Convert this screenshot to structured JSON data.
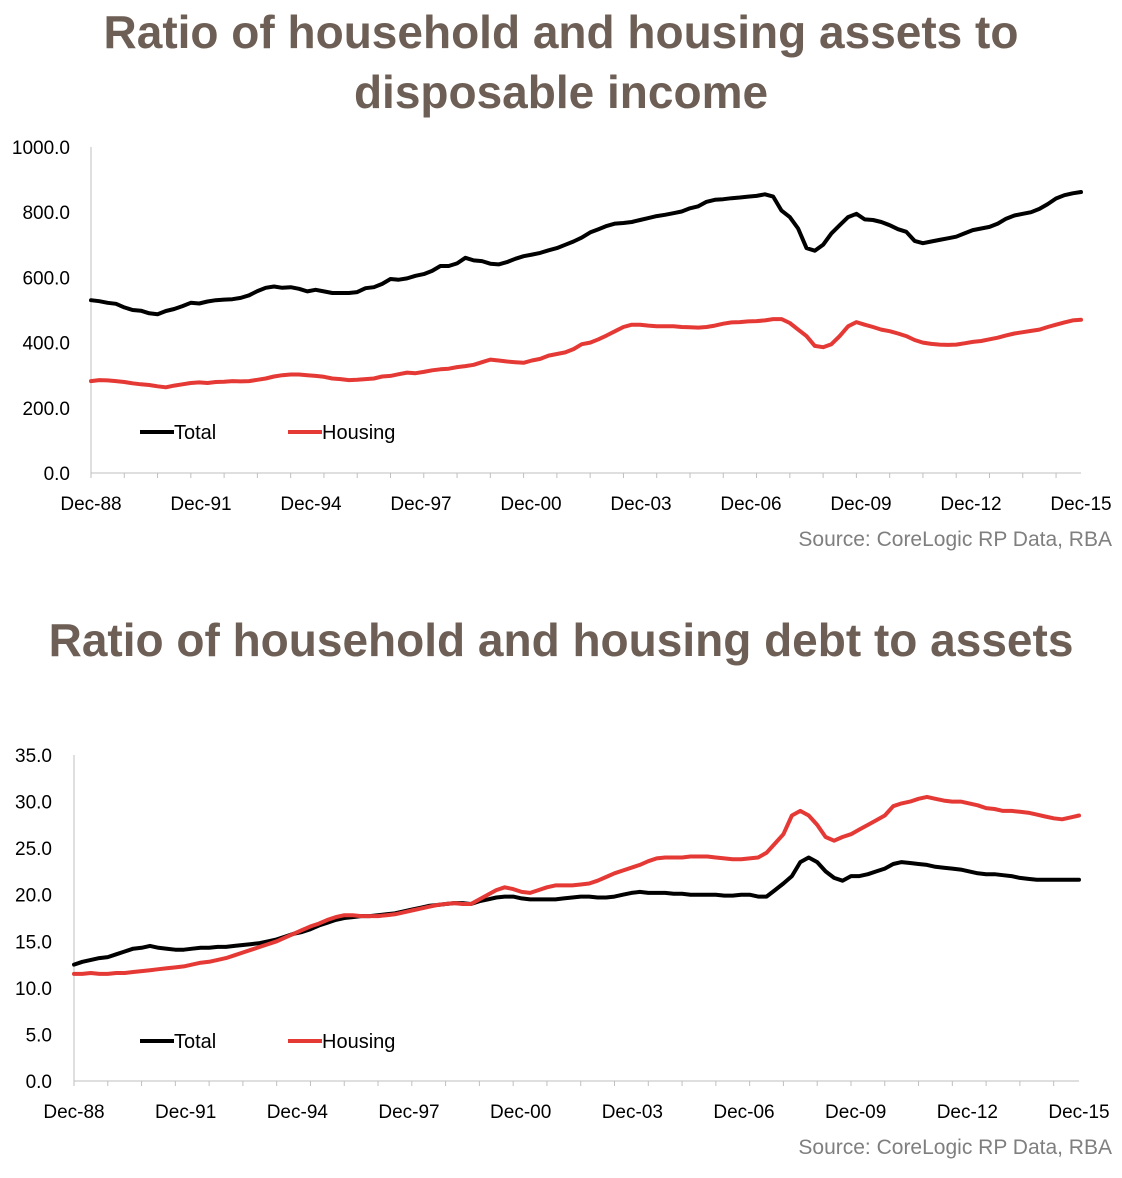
{
  "chart_data": [
    {
      "type": "line",
      "title": "Ratio of household and housing assets to disposable income",
      "source": "Source: CoreLogic RP Data, RBA",
      "x_tick_labels": [
        "Dec-88",
        "Dec-91",
        "Dec-94",
        "Dec-97",
        "Dec-00",
        "Dec-03",
        "Dec-06",
        "Dec-09",
        "Dec-12",
        "Dec-15"
      ],
      "y_tick_labels": [
        "0.0",
        "200.0",
        "400.0",
        "600.0",
        "800.0",
        "1000.0"
      ],
      "ylim": [
        0,
        1000
      ],
      "xlim": [
        "Dec-88",
        "Dec-15"
      ],
      "grid": false,
      "legend_position": "lower-left",
      "series": [
        {
          "name": "Total",
          "color": "#000000",
          "values": [
            530,
            527,
            522,
            519,
            508,
            500,
            498,
            490,
            487,
            497,
            503,
            512,
            522,
            520,
            526,
            530,
            532,
            533,
            537,
            545,
            558,
            568,
            572,
            568,
            570,
            565,
            557,
            562,
            557,
            552,
            552,
            552,
            555,
            567,
            570,
            580,
            595,
            593,
            597,
            605,
            610,
            620,
            635,
            635,
            643,
            660,
            652,
            650,
            642,
            640,
            647,
            657,
            665,
            670,
            675,
            683,
            690,
            700,
            710,
            722,
            738,
            748,
            758,
            765,
            767,
            770,
            776,
            782,
            788,
            792,
            797,
            802,
            812,
            818,
            832,
            838,
            840,
            843,
            845,
            848,
            850,
            855,
            848,
            805,
            785,
            750,
            690,
            682,
            700,
            735,
            760,
            785,
            795,
            778,
            776,
            770,
            760,
            748,
            740,
            712,
            705,
            710,
            715,
            720,
            725,
            735,
            745,
            750,
            755,
            765,
            780,
            790,
            795,
            800,
            810,
            825,
            842,
            852,
            858,
            862
          ]
        },
        {
          "name": "Housing",
          "color": "#e53935",
          "values": [
            282,
            285,
            284,
            282,
            279,
            275,
            272,
            270,
            266,
            263,
            268,
            272,
            276,
            278,
            276,
            279,
            280,
            282,
            281,
            282,
            286,
            290,
            296,
            300,
            302,
            302,
            300,
            298,
            295,
            290,
            288,
            285,
            286,
            288,
            290,
            296,
            298,
            303,
            308,
            306,
            310,
            315,
            318,
            320,
            325,
            328,
            332,
            340,
            348,
            345,
            342,
            340,
            338,
            345,
            350,
            360,
            365,
            370,
            380,
            395,
            400,
            410,
            422,
            435,
            448,
            455,
            455,
            452,
            450,
            450,
            450,
            448,
            447,
            446,
            448,
            452,
            458,
            462,
            463,
            465,
            466,
            468,
            472,
            472,
            460,
            440,
            420,
            390,
            386,
            395,
            420,
            450,
            463,
            455,
            448,
            440,
            435,
            428,
            420,
            408,
            400,
            396,
            394,
            393,
            394,
            398,
            402,
            405,
            410,
            415,
            422,
            428,
            432,
            436,
            440,
            448,
            455,
            462,
            468,
            470
          ]
        }
      ]
    },
    {
      "type": "line",
      "title": "Ratio of household and housing debt to assets",
      "source": "Source: CoreLogic RP Data, RBA",
      "x_tick_labels": [
        "Dec-88",
        "Dec-91",
        "Dec-94",
        "Dec-97",
        "Dec-00",
        "Dec-03",
        "Dec-06",
        "Dec-09",
        "Dec-12",
        "Dec-15"
      ],
      "y_tick_labels": [
        "0.0",
        "5.0",
        "10.0",
        "15.0",
        "20.0",
        "25.0",
        "30.0",
        "35.0"
      ],
      "ylim": [
        0,
        35
      ],
      "xlim": [
        "Dec-88",
        "Dec-15"
      ],
      "grid": false,
      "legend_position": "lower-left",
      "series": [
        {
          "name": "Total",
          "color": "#000000",
          "values": [
            12.5,
            12.8,
            13.0,
            13.2,
            13.3,
            13.6,
            13.9,
            14.2,
            14.3,
            14.5,
            14.3,
            14.2,
            14.1,
            14.1,
            14.2,
            14.3,
            14.3,
            14.4,
            14.4,
            14.5,
            14.6,
            14.7,
            14.8,
            15.0,
            15.2,
            15.5,
            15.8,
            16.0,
            16.3,
            16.7,
            17.0,
            17.3,
            17.5,
            17.6,
            17.7,
            17.7,
            17.8,
            17.9,
            18.0,
            18.2,
            18.4,
            18.6,
            18.8,
            18.9,
            19.0,
            19.1,
            19.1,
            19.0,
            19.3,
            19.5,
            19.7,
            19.8,
            19.8,
            19.6,
            19.5,
            19.5,
            19.5,
            19.5,
            19.6,
            19.7,
            19.8,
            19.8,
            19.7,
            19.7,
            19.8,
            20.0,
            20.2,
            20.3,
            20.2,
            20.2,
            20.2,
            20.1,
            20.1,
            20.0,
            20.0,
            20.0,
            20.0,
            19.9,
            19.9,
            20.0,
            20.0,
            19.8,
            19.8,
            20.5,
            21.2,
            22.0,
            23.5,
            24.0,
            23.5,
            22.5,
            21.8,
            21.5,
            22.0,
            22.0,
            22.2,
            22.5,
            22.8,
            23.3,
            23.5,
            23.4,
            23.3,
            23.2,
            23.0,
            22.9,
            22.8,
            22.7,
            22.5,
            22.3,
            22.2,
            22.2,
            22.1,
            22.0,
            21.8,
            21.7,
            21.6,
            21.6,
            21.6,
            21.6,
            21.6,
            21.6
          ]
        },
        {
          "name": "Housing",
          "color": "#e53935",
          "values": [
            11.5,
            11.5,
            11.6,
            11.5,
            11.5,
            11.6,
            11.6,
            11.7,
            11.8,
            11.9,
            12.0,
            12.1,
            12.2,
            12.3,
            12.5,
            12.7,
            12.8,
            13.0,
            13.2,
            13.5,
            13.8,
            14.1,
            14.4,
            14.7,
            15.0,
            15.4,
            15.8,
            16.2,
            16.6,
            16.9,
            17.3,
            17.6,
            17.8,
            17.8,
            17.7,
            17.7,
            17.7,
            17.8,
            17.9,
            18.1,
            18.3,
            18.5,
            18.7,
            18.9,
            19.0,
            19.1,
            19.0,
            19.0,
            19.5,
            20.0,
            20.5,
            20.8,
            20.6,
            20.3,
            20.2,
            20.5,
            20.8,
            21.0,
            21.0,
            21.0,
            21.1,
            21.2,
            21.5,
            21.9,
            22.3,
            22.6,
            22.9,
            23.2,
            23.6,
            23.9,
            24.0,
            24.0,
            24.0,
            24.1,
            24.1,
            24.1,
            24.0,
            23.9,
            23.8,
            23.8,
            23.9,
            24.0,
            24.5,
            25.5,
            26.5,
            28.5,
            29.0,
            28.5,
            27.5,
            26.2,
            25.8,
            26.2,
            26.5,
            27.0,
            27.5,
            28.0,
            28.5,
            29.5,
            29.8,
            30.0,
            30.3,
            30.5,
            30.3,
            30.1,
            30.0,
            30.0,
            29.8,
            29.6,
            29.3,
            29.2,
            29.0,
            29.0,
            28.9,
            28.8,
            28.6,
            28.4,
            28.2,
            28.1,
            28.3,
            28.5
          ]
        }
      ]
    }
  ]
}
